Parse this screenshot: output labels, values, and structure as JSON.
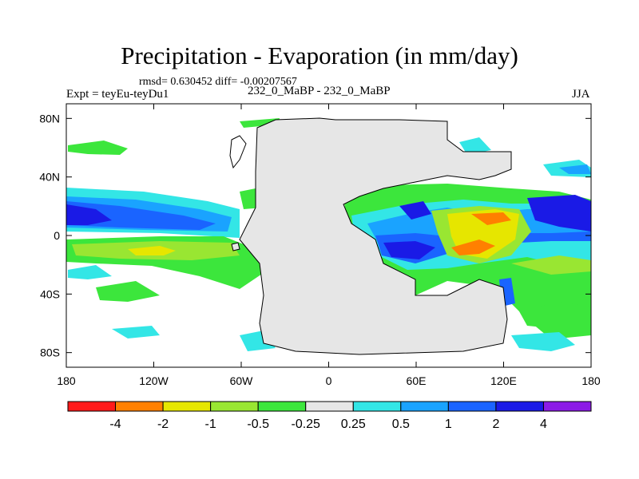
{
  "header": {
    "title": "Precipitation - Evaporation (in mm/day)",
    "stats": "rmsd= 0.630452 diff= -0.00207567",
    "experiment": "Expt = teyEu-teyDu1",
    "comparison": "232_0_MaBP - 232_0_MaBP",
    "season": "JJA"
  },
  "axes": {
    "x_ticks": [
      {
        "lon": -180,
        "label": "180"
      },
      {
        "lon": -120,
        "label": "120W"
      },
      {
        "lon": -60,
        "label": "60W"
      },
      {
        "lon": 0,
        "label": "0"
      },
      {
        "lon": 60,
        "label": "60E"
      },
      {
        "lon": 120,
        "label": "120E"
      },
      {
        "lon": 180,
        "label": "180"
      }
    ],
    "y_ticks": [
      {
        "lat": 80,
        "label": "80N"
      },
      {
        "lat": 40,
        "label": "40N"
      },
      {
        "lat": 0,
        "label": "0"
      },
      {
        "lat": -40,
        "label": "40S"
      },
      {
        "lat": -80,
        "label": "80S"
      }
    ],
    "lon_range": [
      -180,
      180
    ],
    "lat_range": [
      -90,
      90
    ]
  },
  "colorbar": {
    "colors": [
      "#ff1a1a",
      "#ff8000",
      "#e6e600",
      "#99e632",
      "#3ce63c",
      "#e6e6e6",
      "#33e6e6",
      "#1aa3ff",
      "#1a64ff",
      "#1a1ae6",
      "#8c1ae6"
    ],
    "labels": [
      "-4",
      "-2",
      "-1",
      "-0.5",
      "-0.25",
      "0.25",
      "0.5",
      "1",
      "2",
      "4"
    ]
  }
}
